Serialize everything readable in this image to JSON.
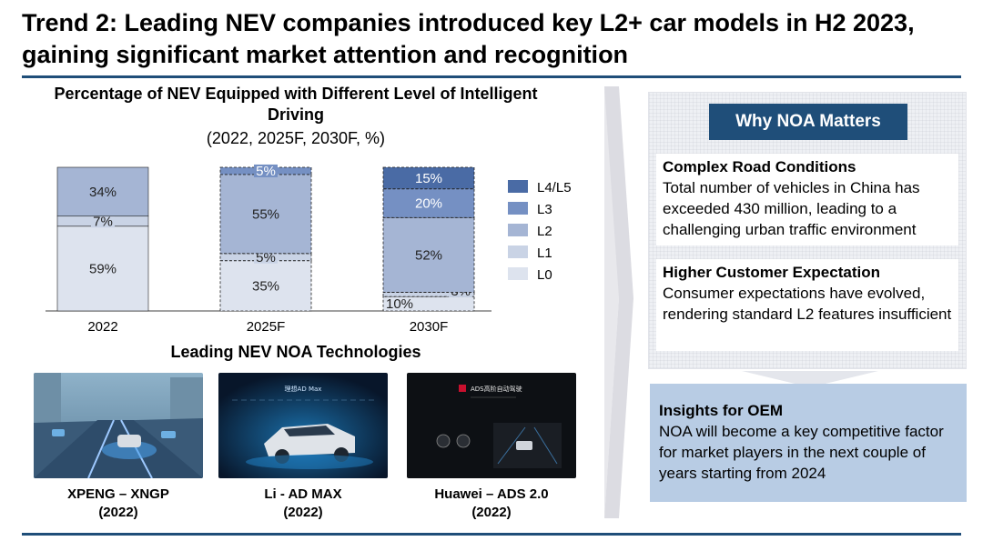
{
  "headline": "Trend 2: Leading NEV companies introduced key L2+ car models in H2 2023, gaining significant market attention and recognition",
  "chart_data": {
    "type": "bar",
    "stacked": true,
    "title": "Percentage of NEV Equipped with Different Level of Intelligent Driving",
    "subtitle": "(2022, 2025F, 2030F, %)",
    "categories": [
      "2022",
      "2025F",
      "2030F"
    ],
    "series": [
      {
        "name": "L0",
        "values": [
          59,
          35,
          10
        ],
        "color": "#dde3ee"
      },
      {
        "name": "L1",
        "values": [
          7,
          5,
          3
        ],
        "color": "#c9d3e5"
      },
      {
        "name": "L2",
        "values": [
          34,
          55,
          52
        ],
        "color": "#a5b5d4"
      },
      {
        "name": "L3",
        "values": [
          0,
          5,
          20
        ],
        "color": "#7590c3"
      },
      {
        "name": "L4/L5",
        "values": [
          0,
          0,
          15
        ],
        "color": "#4a6ba5"
      }
    ],
    "forecast_categories": [
      "2025F",
      "2030F"
    ],
    "ylim": [
      0,
      100
    ],
    "legend_position": "right"
  },
  "technologies": {
    "heading": "Leading NEV NOA Technologies",
    "items": [
      {
        "name": "XPENG – XNGP",
        "year": "(2022)"
      },
      {
        "name": "Li - AD MAX",
        "year": "(2022)",
        "screen_text": "理想AD Max"
      },
      {
        "name": "Huawei – ADS 2.0",
        "year": "(2022)",
        "screen_text": "ADS高阶自动驾驶"
      }
    ]
  },
  "why_noa": {
    "title": "Why NOA Matters",
    "reasons": [
      {
        "title": "Complex Road Conditions",
        "body": "Total number of vehicles in China has exceeded 430 million, leading to a challenging urban traffic environment"
      },
      {
        "title": "Higher Customer Expectation",
        "body": "Consumer expectations have evolved, rendering standard L2 features insufficient"
      }
    ]
  },
  "insights": {
    "title": "Insights for OEM",
    "body": "NOA will become a key competitive factor for market players in the next couple of years starting from 2024"
  },
  "colors": {
    "navy": "#1f4e79",
    "insight_bg": "#b8cce4"
  }
}
